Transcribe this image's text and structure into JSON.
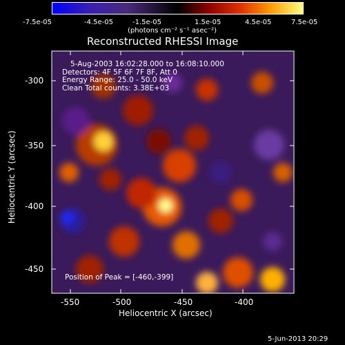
{
  "colorbar": {
    "tick_labels": [
      "-7.5e-05",
      "-4.5e-05",
      "-1.5e-05",
      "1.5e-05",
      "4.5e-05",
      "7.5e-05"
    ],
    "units": "(photons cm⁻² s⁻¹ asec⁻²)",
    "colors": {
      "low": "#0000ff",
      "mid": "#000000",
      "high": "#ffff80"
    }
  },
  "image": {
    "title": "Reconstructed RHESSI Image",
    "info_lines": [
      "5-Aug-2003 16:02:28.000 to 16:08:10.000",
      "Detectors: 4F 5F 6F 7F 8F, Att 0",
      "Energy Range: 25.0 - 50.0 keV",
      "Clean    Total counts: 3.38E+03"
    ],
    "peak_label": "Position of Peak = [-460,-399]"
  },
  "axes": {
    "xlabel": "Heliocentric X (arcsec)",
    "ylabel": "Heliocentric Y (arcsec)",
    "x_ticks": [
      "-550",
      "-500",
      "-450",
      "-400"
    ],
    "y_ticks": [
      "-300",
      "-350",
      "-400",
      "-450"
    ],
    "x_range": [
      -560,
      -364
    ],
    "y_range": [
      -468,
      -272
    ]
  },
  "footer": {
    "date": "5-Jun-2013 20:29"
  }
}
